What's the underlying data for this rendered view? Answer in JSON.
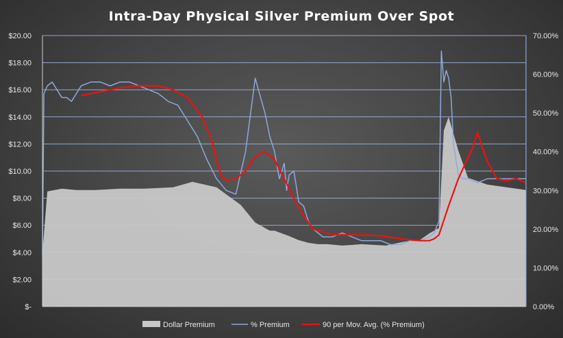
{
  "chart_data": {
    "type": "line",
    "title": "Intra-Day Physical Silver Premium Over Spot",
    "xlabel": "",
    "ylabel": "",
    "y_left": {
      "ylim": [
        0,
        20
      ],
      "tick_values": [
        0,
        2,
        4,
        6,
        8,
        10,
        12,
        14,
        16,
        18,
        20
      ],
      "tick_labels": [
        "$-",
        "$2.00",
        "$4.00",
        "$6.00",
        "$8.00",
        "$10.00",
        "$12.00",
        "$14.00",
        "$16.00",
        "$18.00",
        "$20.00"
      ]
    },
    "y_right": {
      "ylim": [
        0,
        70
      ],
      "tick_values": [
        0,
        10,
        20,
        30,
        40,
        50,
        60,
        70
      ],
      "tick_labels": [
        "0.00%",
        "10.00%",
        "20.00%",
        "30.00%",
        "40.00%",
        "50.00%",
        "60.00%",
        "70.00%"
      ]
    },
    "grid": true,
    "legend_position": "bottom",
    "series": [
      {
        "name": "Dollar Premium",
        "kind": "area",
        "axis": "left",
        "color": "#c8c8c8",
        "x": [
          0,
          1,
          4,
          7,
          11,
          16,
          21,
          27,
          31,
          36,
          41,
          44,
          47,
          48,
          51,
          53,
          55,
          57,
          59,
          62,
          66,
          71,
          75,
          78,
          80,
          82,
          83,
          84,
          86,
          88,
          92,
          96,
          100
        ],
        "values": [
          4.0,
          8.5,
          8.7,
          8.6,
          8.6,
          8.7,
          8.7,
          8.8,
          9.2,
          8.8,
          7.5,
          6.2,
          5.6,
          5.6,
          5.2,
          4.9,
          4.7,
          4.6,
          4.6,
          4.5,
          4.6,
          4.5,
          4.8,
          4.9,
          5.4,
          5.8,
          13.0,
          14.0,
          11.5,
          9.5,
          9.0,
          8.8,
          8.6
        ]
      },
      {
        "name": "% Premium",
        "kind": "line",
        "axis": "right",
        "color": "#8ea8dc",
        "x": [
          0,
          0.3,
          1,
          2,
          3,
          4,
          5,
          6,
          7,
          8,
          10,
          12,
          14,
          16,
          18,
          20,
          22,
          24,
          26,
          28,
          30,
          32,
          34,
          36,
          38,
          40,
          42,
          44,
          46,
          47,
          48,
          49,
          50,
          50.5,
          51,
          52,
          53,
          54,
          55,
          56,
          57,
          58,
          59,
          60,
          62,
          64,
          66,
          68,
          70,
          72,
          74,
          76,
          78,
          80,
          81,
          82,
          82.5,
          83,
          83.5,
          84,
          84.5,
          85,
          86,
          87,
          88,
          90,
          92,
          94,
          96,
          98,
          100
        ],
        "values": [
          13,
          55,
          57,
          58,
          56,
          54,
          54,
          53,
          55,
          57,
          58,
          58,
          57,
          58,
          58,
          57,
          56,
          55,
          53,
          52,
          48,
          44,
          38,
          33,
          30,
          29,
          40,
          59,
          50,
          44,
          40,
          33,
          37,
          30,
          34,
          35,
          27,
          26,
          22,
          20,
          19,
          18,
          18,
          18,
          19,
          18,
          17,
          17,
          17,
          16,
          16,
          17,
          17,
          18,
          19,
          22,
          66,
          58,
          61,
          59,
          54,
          42,
          34,
          33,
          33,
          32,
          33,
          33,
          33,
          33,
          33
        ]
      },
      {
        "name": "90 per Mov. Avg. (% Premium)",
        "kind": "line",
        "axis": "right",
        "color": "#ee1111",
        "x": [
          8,
          12,
          16,
          20,
          24,
          27,
          30,
          33,
          35,
          36,
          37,
          38,
          40,
          42,
          44,
          45,
          46,
          48,
          50,
          52,
          54,
          56,
          60,
          66,
          70,
          74,
          78,
          80,
          81,
          82,
          84,
          86,
          88,
          89,
          90,
          91,
          92,
          94,
          96,
          98,
          100
        ],
        "values": [
          54.5,
          55.5,
          56.5,
          57,
          57,
          56,
          54,
          49,
          43,
          38,
          34,
          32.5,
          33,
          35,
          38.5,
          39.5,
          40,
          38,
          33,
          28,
          23.5,
          20,
          18.5,
          18.5,
          18.3,
          17.5,
          17,
          17,
          17.5,
          18.5,
          26,
          33,
          38.5,
          41,
          45,
          41,
          37.5,
          33,
          32.5,
          33,
          32
        ]
      }
    ]
  }
}
